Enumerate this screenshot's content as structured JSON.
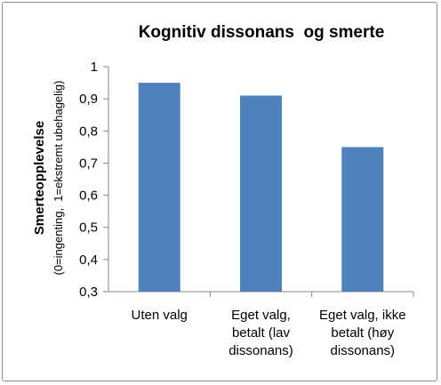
{
  "chart_data": {
    "type": "bar",
    "title": "Kognitiv dissonans  og smerte",
    "ylabel": "Smerteopplevelse",
    "ylabel_sub": "(0=ingenting,  1=ekstremt ubehagelig)",
    "xlabel": "",
    "categories": [
      [
        "Uten valg"
      ],
      [
        "Eget valg,",
        "betalt (lav",
        "dissonans)"
      ],
      [
        "Eget valg, ikke",
        "betalt (høy",
        "dissonans)"
      ]
    ],
    "values": [
      0.95,
      0.91,
      0.75
    ],
    "ylim": [
      0.3,
      1.0
    ],
    "yticks": [
      "0,3",
      "0,4",
      "0,5",
      "0,6",
      "0,7",
      "0,8",
      "0,9",
      "1"
    ],
    "grid": false,
    "bar_color": "#4F81BD",
    "axis_color": "#868686"
  }
}
